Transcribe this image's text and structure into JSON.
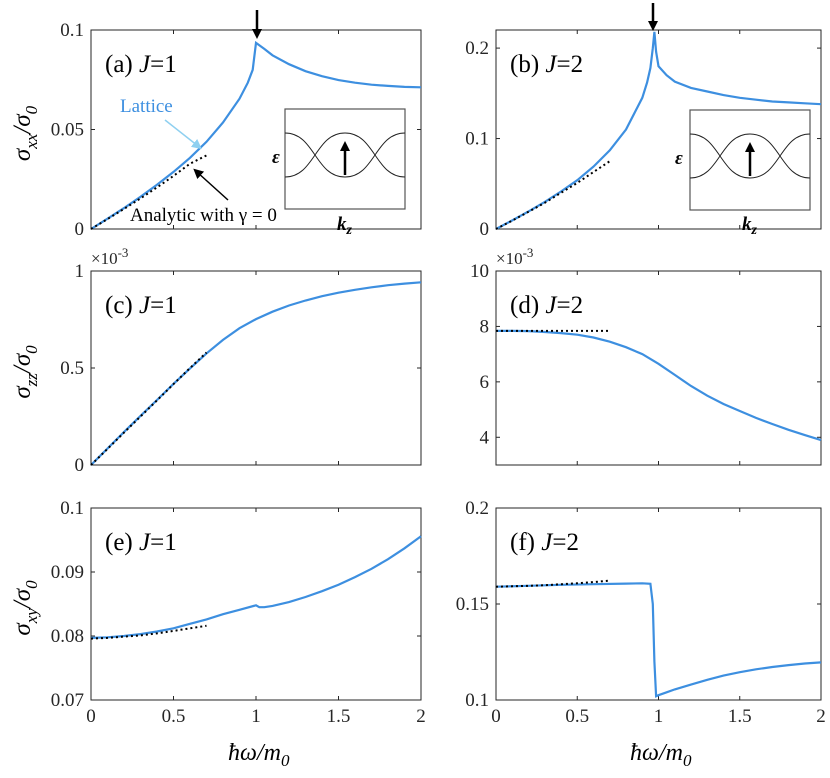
{
  "figure": {
    "xlabel": "ħω/m",
    "xlabel_sub": "0",
    "colors": {
      "lattice": "#3d8fe0",
      "analytic": "#000000",
      "axes": "#262626"
    }
  },
  "annotations": {
    "lattice": "Lattice",
    "analytic": "Analytic with γ = 0",
    "inset_ylabel": "ε",
    "inset_xlabel": "k",
    "inset_xlabel_sub": "z"
  },
  "chart_data": [
    {
      "id": "a",
      "type": "line",
      "panel_label": "(a)",
      "J_text": "J",
      "J_value": "=1",
      "ylabel_main": "σ",
      "ylabel_sub1": "xx",
      "ylabel_sep": "/σ",
      "ylabel_sub2": "0",
      "xlim": [
        0,
        2
      ],
      "ylim": [
        0,
        0.1
      ],
      "xticks": [
        0,
        0.5,
        1,
        1.5,
        2
      ],
      "xtick_labels": [
        "",
        "",
        "",
        "",
        ""
      ],
      "yticks": [
        0,
        0.05,
        0.1
      ],
      "ytick_labels": [
        "0",
        "0.05",
        "0.1"
      ],
      "multiplier": "",
      "series": [
        {
          "name": "Lattice",
          "style": "solid",
          "x": [
            0,
            0.1,
            0.2,
            0.3,
            0.4,
            0.5,
            0.6,
            0.7,
            0.8,
            0.9,
            0.95,
            0.98,
            1.0,
            1.05,
            1.1,
            1.2,
            1.3,
            1.4,
            1.5,
            1.6,
            1.7,
            1.8,
            1.9,
            2.0
          ],
          "y": [
            0,
            0.0052,
            0.0105,
            0.0162,
            0.0222,
            0.0287,
            0.0358,
            0.0438,
            0.0535,
            0.0655,
            0.0735,
            0.08,
            0.0935,
            0.0905,
            0.0873,
            0.0828,
            0.0793,
            0.0768,
            0.0748,
            0.0735,
            0.0725,
            0.0719,
            0.0714,
            0.0712
          ]
        },
        {
          "name": "Analytic with γ = 0",
          "style": "dotted",
          "x": [
            0,
            0.1,
            0.2,
            0.3,
            0.4,
            0.5,
            0.6,
            0.7
          ],
          "y": [
            0,
            0.005,
            0.0101,
            0.0154,
            0.0209,
            0.0267,
            0.0328,
            0.037
          ]
        }
      ]
    },
    {
      "id": "b",
      "type": "line",
      "panel_label": "(b)",
      "J_text": "J",
      "J_value": "=2",
      "ylabel_main": "",
      "ylabel_sub1": "",
      "ylabel_sep": "",
      "ylabel_sub2": "",
      "xlim": [
        0,
        2
      ],
      "ylim": [
        0,
        0.22
      ],
      "xticks": [
        0,
        0.5,
        1,
        1.5,
        2
      ],
      "xtick_labels": [
        "",
        "",
        "",
        "",
        ""
      ],
      "yticks": [
        0,
        0.1,
        0.2
      ],
      "ytick_labels": [
        "0",
        "0.1",
        "0.2"
      ],
      "multiplier": "",
      "series": [
        {
          "name": "Lattice",
          "style": "solid",
          "x": [
            0,
            0.1,
            0.2,
            0.3,
            0.4,
            0.5,
            0.6,
            0.7,
            0.8,
            0.9,
            0.93,
            0.95,
            0.965,
            0.975,
            0.985,
            1.0,
            1.05,
            1.1,
            1.2,
            1.3,
            1.4,
            1.5,
            1.6,
            1.7,
            1.8,
            1.9,
            2.0
          ],
          "y": [
            0,
            0.0095,
            0.0195,
            0.03,
            0.0415,
            0.054,
            0.069,
            0.087,
            0.11,
            0.145,
            0.162,
            0.178,
            0.2,
            0.218,
            0.196,
            0.18,
            0.17,
            0.163,
            0.156,
            0.152,
            0.148,
            0.145,
            0.143,
            0.141,
            0.14,
            0.139,
            0.138
          ]
        },
        {
          "name": "Analytic with γ = 0",
          "style": "dotted",
          "x": [
            0,
            0.1,
            0.2,
            0.3,
            0.4,
            0.5,
            0.6,
            0.7
          ],
          "y": [
            0,
            0.0093,
            0.019,
            0.029,
            0.04,
            0.051,
            0.063,
            0.075
          ]
        }
      ]
    },
    {
      "id": "c",
      "type": "line",
      "panel_label": "(c)",
      "J_text": "J",
      "J_value": "=1",
      "ylabel_main": "σ",
      "ylabel_sub1": "zz",
      "ylabel_sep": "/σ",
      "ylabel_sub2": "0",
      "xlim": [
        0,
        2
      ],
      "ylim": [
        0,
        1
      ],
      "xticks": [
        0,
        0.5,
        1,
        1.5,
        2
      ],
      "xtick_labels": [
        "",
        "",
        "",
        "",
        ""
      ],
      "yticks": [
        0,
        0.5,
        1
      ],
      "ytick_labels": [
        "0",
        "0.5",
        "1"
      ],
      "multiplier": "×10",
      "multiplier_exp": "-3",
      "series": [
        {
          "name": "Lattice",
          "style": "solid",
          "x": [
            0,
            0.1,
            0.2,
            0.3,
            0.4,
            0.5,
            0.6,
            0.7,
            0.8,
            0.9,
            1.0,
            1.1,
            1.2,
            1.3,
            1.4,
            1.5,
            1.6,
            1.7,
            1.8,
            1.9,
            2.0
          ],
          "y": [
            0,
            0.085,
            0.17,
            0.253,
            0.335,
            0.418,
            0.498,
            0.575,
            0.645,
            0.705,
            0.752,
            0.79,
            0.822,
            0.848,
            0.87,
            0.888,
            0.903,
            0.916,
            0.927,
            0.935,
            0.942
          ]
        },
        {
          "name": "Analytic with γ = 0",
          "style": "dotted",
          "x": [
            0,
            0.1,
            0.2,
            0.3,
            0.4,
            0.5,
            0.6,
            0.7
          ],
          "y": [
            0,
            0.083,
            0.167,
            0.25,
            0.333,
            0.417,
            0.5,
            0.58
          ]
        }
      ]
    },
    {
      "id": "d",
      "type": "line",
      "panel_label": "(d)",
      "J_text": "J",
      "J_value": "=2",
      "ylabel_main": "",
      "ylabel_sub1": "",
      "ylabel_sep": "",
      "ylabel_sub2": "",
      "xlim": [
        0,
        2
      ],
      "ylim": [
        3,
        10
      ],
      "xticks": [
        0,
        0.5,
        1,
        1.5,
        2
      ],
      "xtick_labels": [
        "",
        "",
        "",
        "",
        ""
      ],
      "yticks": [
        4,
        6,
        8,
        10
      ],
      "ytick_labels": [
        "4",
        "6",
        "8",
        "10"
      ],
      "multiplier": "×10",
      "multiplier_exp": "-3",
      "series": [
        {
          "name": "Lattice",
          "style": "solid",
          "x": [
            0,
            0.1,
            0.2,
            0.3,
            0.4,
            0.5,
            0.6,
            0.7,
            0.8,
            0.9,
            1.0,
            1.1,
            1.2,
            1.3,
            1.4,
            1.5,
            1.6,
            1.7,
            1.8,
            1.9,
            2.0
          ],
          "y": [
            7.84,
            7.84,
            7.83,
            7.8,
            7.76,
            7.7,
            7.6,
            7.45,
            7.25,
            7.0,
            6.65,
            6.25,
            5.85,
            5.5,
            5.2,
            4.95,
            4.7,
            4.48,
            4.27,
            4.08,
            3.9
          ]
        },
        {
          "name": "Analytic with γ = 0",
          "style": "dotted",
          "x": [
            0,
            0.1,
            0.2,
            0.3,
            0.4,
            0.5,
            0.6,
            0.7
          ],
          "y": [
            7.84,
            7.84,
            7.84,
            7.84,
            7.84,
            7.84,
            7.84,
            7.84
          ]
        }
      ]
    },
    {
      "id": "e",
      "type": "line",
      "panel_label": "(e)",
      "J_text": "J",
      "J_value": "=1",
      "ylabel_main": "σ",
      "ylabel_sub1": "xy",
      "ylabel_sep": "/σ",
      "ylabel_sub2": "0",
      "xlim": [
        0,
        2
      ],
      "ylim": [
        0.07,
        0.1
      ],
      "xticks": [
        0,
        0.5,
        1,
        1.5,
        2
      ],
      "xtick_labels": [
        "0",
        "0.5",
        "1",
        "1.5",
        "2"
      ],
      "yticks": [
        0.07,
        0.08,
        0.09,
        0.1
      ],
      "ytick_labels": [
        "0.07",
        "0.08",
        "0.09",
        "0.1"
      ],
      "multiplier": "",
      "series": [
        {
          "name": "Lattice",
          "style": "solid",
          "x": [
            0,
            0.1,
            0.2,
            0.3,
            0.4,
            0.5,
            0.6,
            0.7,
            0.8,
            0.9,
            1.0,
            1.02,
            1.05,
            1.1,
            1.2,
            1.3,
            1.4,
            1.5,
            1.6,
            1.7,
            1.8,
            1.9,
            2.0
          ],
          "y": [
            0.0797,
            0.0798,
            0.08,
            0.0803,
            0.0807,
            0.0812,
            0.0819,
            0.0826,
            0.0834,
            0.0841,
            0.0848,
            0.0845,
            0.0845,
            0.0847,
            0.0853,
            0.0861,
            0.087,
            0.088,
            0.0892,
            0.0905,
            0.092,
            0.0937,
            0.0956
          ]
        },
        {
          "name": "Analytic with γ = 0",
          "style": "dotted",
          "x": [
            0,
            0.1,
            0.2,
            0.3,
            0.4,
            0.5,
            0.6,
            0.7
          ],
          "y": [
            0.0796,
            0.0797,
            0.0799,
            0.0801,
            0.0804,
            0.0808,
            0.0812,
            0.0816
          ]
        }
      ]
    },
    {
      "id": "f",
      "type": "line",
      "panel_label": "(f)",
      "J_text": "J",
      "J_value": "=2",
      "ylabel_main": "",
      "ylabel_sub1": "",
      "ylabel_sep": "",
      "ylabel_sub2": "",
      "xlim": [
        0,
        2
      ],
      "ylim": [
        0.1,
        0.2
      ],
      "xticks": [
        0,
        0.5,
        1,
        1.5,
        2
      ],
      "xtick_labels": [
        "0",
        "0.5",
        "1",
        "1.5",
        "2"
      ],
      "yticks": [
        0.1,
        0.15,
        0.2
      ],
      "ytick_labels": [
        "0.1",
        "0.15",
        "0.2"
      ],
      "multiplier": "",
      "series": [
        {
          "name": "Lattice",
          "style": "solid",
          "x": [
            0,
            0.2,
            0.4,
            0.6,
            0.8,
            0.9,
            0.95,
            0.965,
            0.975,
            0.985,
            1.0,
            1.05,
            1.1,
            1.2,
            1.3,
            1.4,
            1.5,
            1.6,
            1.7,
            1.8,
            1.9,
            2.0
          ],
          "y": [
            0.159,
            0.1595,
            0.16,
            0.1603,
            0.1606,
            0.1608,
            0.1605,
            0.15,
            0.12,
            0.102,
            0.1025,
            0.104,
            0.1055,
            0.108,
            0.1105,
            0.1127,
            0.1145,
            0.116,
            0.1172,
            0.1182,
            0.119,
            0.1196
          ]
        },
        {
          "name": "Analytic with γ = 0",
          "style": "dotted",
          "x": [
            0,
            0.1,
            0.2,
            0.3,
            0.4,
            0.5,
            0.6,
            0.7
          ],
          "y": [
            0.159,
            0.1592,
            0.1595,
            0.1598,
            0.1603,
            0.1608,
            0.1614,
            0.1622
          ]
        }
      ]
    }
  ]
}
